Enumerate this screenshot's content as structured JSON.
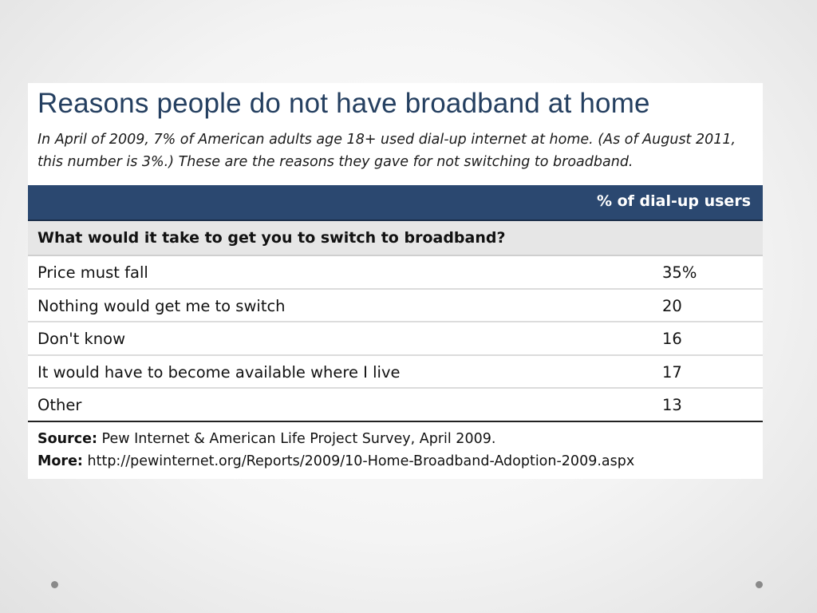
{
  "chart_data": {
    "type": "table",
    "title": "Reasons people do not have broadband at home",
    "subtitle": "In April of 2009, 7% of American adults age 18+ used dial-up internet at home. (As of August 2011, this number is 3%.) These are the reasons they gave for not switching to broadband.",
    "column_header": "% of dial-up users",
    "question": "What would it take to get you to switch to broadband?",
    "rows": [
      {
        "label": "Price must fall",
        "value": "35%"
      },
      {
        "label": "Nothing would get me to switch",
        "value": "20"
      },
      {
        "label": "Don't know",
        "value": "16"
      },
      {
        "label": "It would have to become available where I live",
        "value": "17"
      },
      {
        "label": "Other",
        "value": "13"
      }
    ],
    "source_label": "Source:",
    "source_text": " Pew Internet & American Life Project Survey, April 2009.",
    "more_label": "More:",
    "more_text": " http://pewinternet.org/Reports/2009/10-Home-Broadband-Adoption-2009.aspx"
  },
  "colors": {
    "title": "#243f60",
    "header_bg": "#2b4870",
    "question_bg": "#e6e6e6"
  }
}
